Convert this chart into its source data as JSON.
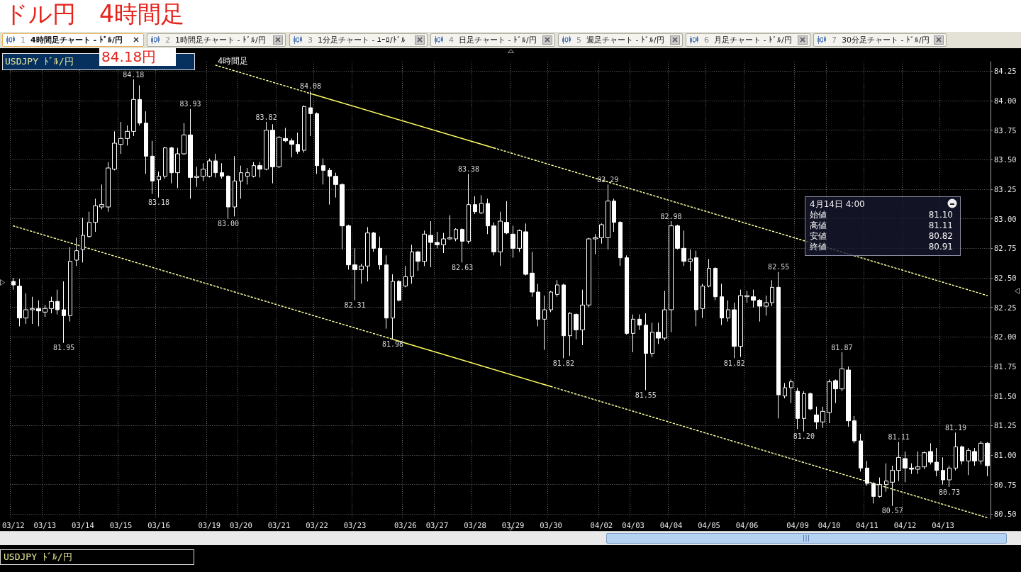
{
  "chart_data": {
    "type": "candlestick",
    "title": "ドル円　4時間足",
    "subtitle": "USDJPY ﾄﾞﾙ/円",
    "categories": [
      "03/12",
      null,
      null,
      null,
      null,
      "03/13",
      null,
      null,
      null,
      null,
      null,
      "03/14",
      null,
      null,
      null,
      null,
      null,
      "03/15",
      null,
      null,
      null,
      null,
      null,
      "03/16",
      null,
      null,
      null,
      null,
      null,
      null,
      null,
      "03/19",
      null,
      null,
      null,
      null,
      "03/20",
      null,
      null,
      null,
      null,
      null,
      "03/21",
      null,
      null,
      null,
      null,
      null,
      "03/22",
      null,
      null,
      null,
      null,
      null,
      "03/23",
      null,
      null,
      null,
      null,
      null,
      null,
      null,
      "03/26",
      null,
      null,
      null,
      null,
      "03/27",
      null,
      null,
      null,
      null,
      null,
      "03/28",
      null,
      null,
      null,
      null,
      null,
      "03/29",
      null,
      null,
      null,
      null,
      null,
      "03/30",
      null,
      null,
      null,
      null,
      null,
      null,
      null,
      "04/02",
      null,
      null,
      null,
      null,
      "04/03",
      null,
      null,
      null,
      null,
      null,
      "04/04",
      null,
      null,
      null,
      null,
      null,
      "04/05",
      null,
      null,
      null,
      null,
      null,
      "04/06",
      null,
      null,
      null,
      null,
      null,
      null,
      null,
      "04/09",
      null,
      null,
      null,
      null,
      "04/10",
      null,
      null,
      null,
      null,
      null,
      "04/11",
      null,
      null,
      null,
      null,
      null,
      "04/12",
      null,
      null,
      null,
      null,
      null,
      "04/13",
      null,
      null,
      null,
      null,
      null,
      null,
      null
    ],
    "ohlc": [
      [
        82.47,
        82.5,
        82.4,
        82.44
      ],
      [
        82.43,
        82.49,
        82.09,
        82.16
      ],
      [
        82.16,
        82.37,
        82.11,
        82.23
      ],
      [
        82.23,
        82.34,
        82.11,
        82.24
      ],
      [
        82.24,
        82.31,
        82.09,
        82.22
      ],
      [
        82.21,
        82.27,
        82.17,
        82.24
      ],
      [
        82.24,
        82.34,
        82.2,
        82.3
      ],
      [
        82.3,
        82.4,
        82.19,
        82.23
      ],
      [
        82.23,
        82.47,
        81.95,
        82.18
      ],
      [
        82.18,
        82.76,
        82.13,
        82.64
      ],
      [
        82.65,
        82.84,
        82.6,
        82.73
      ],
      [
        82.74,
        83.01,
        82.63,
        82.86
      ],
      [
        82.85,
        83.06,
        82.84,
        82.97
      ],
      [
        82.97,
        83.17,
        82.89,
        83.11
      ],
      [
        83.1,
        83.29,
        83.08,
        83.12
      ],
      [
        83.1,
        83.48,
        83.06,
        83.43
      ],
      [
        83.42,
        83.74,
        83.41,
        83.64
      ],
      [
        83.63,
        83.82,
        83.55,
        83.68
      ],
      [
        83.68,
        83.79,
        83.62,
        83.74
      ],
      [
        83.74,
        84.18,
        83.7,
        84.01
      ],
      [
        84.01,
        84.13,
        83.79,
        83.81
      ],
      [
        83.81,
        83.91,
        83.38,
        83.53
      ],
      [
        83.53,
        83.66,
        83.21,
        83.32
      ],
      [
        83.33,
        83.4,
        83.18,
        83.36
      ],
      [
        83.36,
        83.61,
        83.34,
        83.6
      ],
      [
        83.6,
        83.61,
        83.3,
        83.39
      ],
      [
        83.39,
        83.6,
        83.26,
        83.55
      ],
      [
        83.55,
        83.81,
        83.54,
        83.71
      ],
      [
        83.71,
        83.93,
        83.17,
        83.35
      ],
      [
        83.35,
        83.44,
        83.27,
        83.36
      ],
      [
        83.36,
        83.47,
        83.32,
        83.42
      ],
      [
        83.36,
        83.51,
        83.35,
        83.49
      ],
      [
        83.49,
        83.55,
        83.35,
        83.39
      ],
      [
        83.39,
        83.47,
        83.34,
        83.36
      ],
      [
        83.36,
        83.37,
        83.0,
        83.1
      ],
      [
        83.1,
        83.53,
        83.02,
        83.32
      ],
      [
        83.32,
        83.45,
        83.17,
        83.39
      ],
      [
        83.36,
        83.43,
        83.29,
        83.39
      ],
      [
        83.36,
        83.48,
        83.35,
        83.45
      ],
      [
        83.45,
        83.48,
        83.35,
        83.42
      ],
      [
        83.42,
        83.82,
        83.41,
        83.75
      ],
      [
        83.75,
        83.8,
        83.3,
        83.44
      ],
      [
        83.44,
        83.7,
        83.43,
        83.69
      ],
      [
        83.68,
        83.77,
        83.65,
        83.66
      ],
      [
        83.66,
        83.68,
        83.52,
        83.63
      ],
      [
        83.63,
        83.73,
        83.55,
        83.57
      ],
      [
        83.58,
        83.96,
        83.56,
        83.95
      ],
      [
        83.94,
        84.08,
        83.7,
        83.89
      ],
      [
        83.89,
        83.9,
        83.38,
        83.45
      ],
      [
        83.45,
        83.51,
        83.29,
        83.41
      ],
      [
        83.41,
        83.43,
        83.12,
        83.36
      ],
      [
        83.36,
        83.39,
        83.18,
        83.29
      ],
      [
        83.29,
        83.3,
        82.74,
        82.94
      ],
      [
        82.94,
        82.95,
        82.57,
        82.61
      ],
      [
        82.61,
        82.75,
        82.31,
        82.57
      ],
      [
        82.57,
        82.62,
        82.45,
        82.6
      ],
      [
        82.6,
        82.93,
        82.47,
        82.88
      ],
      [
        82.88,
        82.89,
        82.72,
        82.75
      ],
      [
        82.75,
        82.85,
        82.57,
        82.61
      ],
      [
        82.61,
        82.69,
        82.07,
        82.16
      ],
      [
        82.16,
        82.53,
        81.98,
        82.47
      ],
      [
        82.47,
        82.48,
        82.3,
        82.31
      ],
      [
        82.43,
        82.6,
        82.42,
        82.51
      ],
      [
        82.51,
        82.78,
        82.45,
        82.72
      ],
      [
        82.72,
        82.73,
        82.56,
        82.64
      ],
      [
        82.64,
        82.9,
        82.6,
        82.87
      ],
      [
        82.86,
        82.98,
        82.59,
        82.8
      ],
      [
        82.8,
        82.89,
        82.75,
        82.78
      ],
      [
        82.78,
        82.88,
        82.71,
        82.83
      ],
      [
        82.83,
        83.03,
        82.82,
        82.84
      ],
      [
        82.83,
        82.92,
        82.81,
        82.91
      ],
      [
        82.91,
        82.92,
        82.63,
        82.81
      ],
      [
        82.81,
        83.38,
        82.79,
        83.12
      ],
      [
        83.12,
        83.19,
        83.04,
        83.06
      ],
      [
        83.05,
        83.2,
        83.04,
        83.13
      ],
      [
        83.13,
        83.17,
        82.87,
        82.94
      ],
      [
        82.94,
        82.97,
        82.69,
        82.72
      ],
      [
        82.72,
        83.06,
        82.6,
        82.98
      ],
      [
        82.97,
        83.15,
        82.87,
        82.88
      ],
      [
        82.87,
        82.94,
        82.67,
        82.75
      ],
      [
        82.75,
        82.91,
        82.72,
        82.9
      ],
      [
        82.89,
        82.96,
        82.52,
        82.53
      ],
      [
        82.54,
        82.72,
        82.34,
        82.38
      ],
      [
        82.38,
        82.45,
        82.09,
        82.15
      ],
      [
        82.15,
        82.35,
        81.89,
        82.23
      ],
      [
        82.23,
        82.39,
        82.21,
        82.38
      ],
      [
        82.36,
        82.48,
        82.34,
        82.44
      ],
      [
        82.44,
        82.45,
        81.82,
        82.01
      ],
      [
        82.01,
        82.21,
        81.84,
        82.2
      ],
      [
        82.19,
        82.2,
        81.98,
        82.06
      ],
      [
        82.06,
        82.4,
        81.93,
        82.27
      ],
      [
        82.27,
        82.84,
        82.25,
        82.83
      ],
      [
        82.83,
        82.87,
        82.7,
        82.84
      ],
      [
        82.84,
        82.96,
        82.79,
        82.95
      ],
      [
        82.84,
        83.29,
        82.74,
        83.15
      ],
      [
        83.15,
        83.17,
        82.89,
        82.97
      ],
      [
        82.97,
        82.98,
        82.6,
        82.67
      ],
      [
        82.67,
        82.69,
        82.02,
        82.03
      ],
      [
        82.03,
        82.19,
        81.87,
        82.15
      ],
      [
        82.15,
        82.19,
        82.06,
        82.1
      ],
      [
        82.1,
        82.2,
        81.55,
        81.86
      ],
      [
        81.86,
        82.12,
        81.83,
        82.04
      ],
      [
        82.04,
        82.12,
        81.94,
        81.99
      ],
      [
        81.99,
        82.39,
        81.97,
        82.23
      ],
      [
        82.23,
        82.98,
        82.04,
        82.94
      ],
      [
        82.94,
        82.95,
        82.74,
        82.75
      ],
      [
        82.75,
        82.9,
        82.6,
        82.64
      ],
      [
        82.64,
        82.74,
        82.56,
        82.66
      ],
      [
        82.67,
        82.73,
        82.09,
        82.23
      ],
      [
        82.24,
        82.45,
        82.16,
        82.43
      ],
      [
        82.43,
        82.66,
        82.42,
        82.58
      ],
      [
        82.58,
        82.59,
        82.31,
        82.34
      ],
      [
        82.34,
        82.45,
        82.1,
        82.16
      ],
      [
        82.16,
        82.31,
        82.13,
        82.23
      ],
      [
        82.23,
        82.29,
        81.82,
        81.92
      ],
      [
        81.92,
        82.4,
        81.83,
        82.35
      ],
      [
        82.34,
        82.39,
        82.29,
        82.35
      ],
      [
        82.34,
        82.4,
        82.25,
        82.31
      ],
      [
        82.31,
        82.32,
        82.13,
        82.26
      ],
      [
        82.26,
        82.35,
        82.18,
        82.29
      ],
      [
        82.29,
        82.48,
        82.26,
        82.42
      ],
      [
        82.42,
        82.55,
        81.31,
        81.51
      ],
      [
        81.5,
        81.61,
        81.48,
        81.57
      ],
      [
        81.57,
        81.64,
        81.44,
        81.62
      ],
      [
        81.54,
        81.57,
        81.22,
        81.31
      ],
      [
        81.31,
        81.54,
        81.2,
        81.52
      ],
      [
        81.52,
        81.53,
        81.38,
        81.39
      ],
      [
        81.34,
        81.41,
        81.22,
        81.28
      ],
      [
        81.28,
        81.41,
        81.23,
        81.37
      ],
      [
        81.36,
        81.64,
        81.27,
        81.62
      ],
      [
        81.63,
        81.64,
        81.44,
        81.56
      ],
      [
        81.56,
        81.87,
        81.54,
        81.73
      ],
      [
        81.72,
        81.75,
        81.24,
        81.29
      ],
      [
        81.29,
        81.33,
        81.1,
        81.12
      ],
      [
        81.12,
        81.18,
        80.86,
        80.89
      ],
      [
        80.89,
        80.95,
        80.74,
        80.76
      ],
      [
        80.76,
        80.77,
        80.59,
        80.65
      ],
      [
        80.65,
        80.81,
        80.64,
        80.75
      ],
      [
        80.75,
        80.93,
        80.69,
        80.78
      ],
      [
        80.77,
        80.91,
        80.57,
        80.87
      ],
      [
        80.87,
        81.11,
        80.78,
        80.98
      ],
      [
        80.97,
        81.03,
        80.77,
        80.89
      ],
      [
        80.89,
        80.93,
        80.84,
        80.88
      ],
      [
        80.88,
        81.03,
        80.84,
        80.9
      ],
      [
        80.9,
        81.03,
        80.88,
        81.02
      ],
      [
        81.03,
        81.1,
        80.92,
        80.94
      ],
      [
        80.94,
        81.06,
        80.82,
        80.87
      ],
      [
        80.87,
        80.98,
        80.75,
        80.79
      ],
      [
        80.79,
        80.91,
        80.73,
        80.89
      ],
      [
        80.89,
        81.19,
        80.87,
        81.07
      ],
      [
        81.07,
        81.08,
        80.92,
        80.95
      ],
      [
        80.95,
        81.06,
        80.83,
        81.04
      ],
      [
        81.03,
        81.06,
        80.91,
        80.95
      ],
      [
        80.95,
        81.12,
        80.92,
        81.1
      ],
      [
        81.1,
        81.11,
        80.82,
        80.91
      ]
    ],
    "color": "#ffffff",
    "series": [
      {
        "type": "line",
        "name": "4時間足",
        "color": "#ffffa0",
        "line_style": "dotted",
        "values": [
          null,
          null,
          null,
          null,
          null,
          null,
          null,
          null,
          null,
          null,
          null,
          null,
          null,
          null,
          null,
          null,
          null,
          null,
          null,
          null,
          null,
          null,
          null,
          null,
          null,
          null,
          null,
          null,
          null,
          null,
          null,
          null,
          84.3,
          null,
          null,
          null,
          null,
          null,
          null,
          null,
          null,
          null,
          null,
          null,
          null,
          null,
          null,
          84.06,
          null,
          null,
          null,
          null,
          null,
          null,
          null,
          null,
          null,
          null,
          null,
          null,
          null,
          null,
          null,
          null,
          null,
          null,
          null,
          null,
          null,
          null,
          null,
          null,
          null,
          null,
          null,
          null,
          null,
          null,
          null,
          null,
          null,
          null,
          null,
          null,
          null,
          null,
          null,
          null,
          null,
          null,
          null,
          null,
          null,
          null,
          null,
          null,
          null,
          null,
          null,
          null,
          null,
          null,
          null,
          null,
          null,
          null,
          null,
          null,
          null,
          null,
          null,
          null,
          null,
          null,
          null,
          null,
          null,
          null,
          null,
          null,
          null,
          null,
          null,
          null,
          null,
          null,
          null,
          null,
          null,
          null,
          null,
          null,
          null,
          null,
          null,
          null,
          null,
          null,
          null,
          null,
          null,
          null,
          null,
          null,
          null,
          null,
          null,
          null,
          null,
          null,
          null,
          null,
          null,
          null,
          null
        ]
      },
      {
        "type": "line",
        "color": "#ffff60",
        "line_style": "solid",
        "values": [
          null,
          null,
          null,
          null,
          null,
          null,
          null,
          null,
          null,
          null,
          null,
          null,
          null,
          null,
          null,
          null,
          null,
          null,
          null,
          null,
          null,
          null,
          null,
          null,
          null,
          null,
          null,
          null,
          null,
          null,
          null,
          null,
          null,
          null,
          null,
          null,
          null,
          null,
          null,
          null,
          null,
          null,
          null,
          null,
          null,
          null,
          null,
          84.06,
          null,
          null,
          null,
          null,
          null,
          null,
          null,
          null,
          null,
          null,
          null,
          null,
          null,
          null,
          null,
          null,
          null,
          null,
          null,
          null,
          null,
          null,
          null,
          null,
          null,
          null,
          null,
          null,
          83.6,
          null,
          null,
          null,
          null,
          null,
          null,
          null,
          null,
          null,
          null,
          null,
          null,
          null,
          null,
          null,
          null,
          null,
          null,
          null,
          null,
          null,
          null,
          null,
          null,
          null,
          null,
          null,
          null,
          null,
          null,
          null,
          null,
          null,
          null,
          null,
          null,
          null,
          null,
          null,
          null,
          null,
          null,
          null,
          null,
          null,
          null,
          null,
          null,
          null,
          null,
          null,
          null,
          null,
          null,
          null,
          null,
          null,
          null,
          null,
          null,
          null,
          null,
          null,
          null,
          null,
          null,
          null,
          null,
          null,
          null,
          null,
          null,
          null,
          null,
          null,
          null,
          null,
          null
        ]
      },
      {
        "type": "line",
        "color": "#ffffa0",
        "line_style": "dotted",
        "values": [
          null,
          null,
          null,
          null,
          null,
          null,
          null,
          null,
          null,
          null,
          null,
          null,
          null,
          null,
          null,
          null,
          null,
          null,
          null,
          null,
          null,
          null,
          null,
          null,
          null,
          null,
          null,
          null,
          null,
          null,
          null,
          null,
          null,
          null,
          null,
          null,
          null,
          null,
          null,
          null,
          null,
          null,
          null,
          null,
          null,
          null,
          null,
          null,
          null,
          null,
          null,
          null,
          null,
          null,
          null,
          null,
          null,
          null,
          null,
          null,
          null,
          null,
          null,
          null,
          null,
          null,
          null,
          null,
          null,
          null,
          null,
          null,
          null,
          null,
          null,
          null,
          83.6,
          null,
          null,
          null,
          null,
          null,
          null,
          null,
          null,
          null,
          null,
          null,
          null,
          null,
          null,
          null,
          null,
          null,
          null,
          null,
          null,
          null,
          null,
          null,
          null,
          null,
          null,
          null,
          null,
          null,
          null,
          null,
          null,
          null,
          null,
          null,
          null,
          null,
          null,
          null,
          null,
          null,
          null,
          null,
          null,
          null,
          null,
          null,
          null,
          null,
          null,
          null,
          null,
          null,
          null,
          null,
          null,
          null,
          null,
          null,
          null,
          null,
          null,
          null,
          null,
          null,
          null,
          null,
          null,
          null,
          null,
          null,
          null,
          null,
          null,
          null,
          null,
          null,
          82.35
        ]
      },
      {
        "type": "line",
        "color": "#ffffa0",
        "line_style": "dotted",
        "values": [
          82.94,
          null,
          null,
          null,
          null,
          null,
          null,
          null,
          null,
          null,
          null,
          null,
          null,
          null,
          null,
          null,
          null,
          null,
          null,
          null,
          null,
          null,
          null,
          null,
          null,
          null,
          null,
          null,
          null,
          null,
          null,
          null,
          null,
          null,
          null,
          null,
          null,
          null,
          null,
          null,
          null,
          null,
          null,
          null,
          null,
          null,
          null,
          null,
          null,
          null,
          null,
          null,
          null,
          null,
          null,
          null,
          null,
          null,
          null,
          null,
          81.98,
          null,
          null,
          null,
          null,
          null,
          null,
          null,
          null,
          null,
          null,
          null,
          null,
          null,
          null,
          null,
          null,
          null,
          null,
          null,
          null,
          null,
          null,
          null,
          null,
          null,
          null,
          null,
          null,
          null,
          null,
          null,
          null,
          null,
          null,
          null,
          null,
          null,
          null,
          null,
          null,
          null,
          null,
          null,
          null,
          null,
          null,
          null,
          null,
          null,
          null,
          null,
          null,
          null,
          null,
          null,
          null,
          null,
          null,
          null,
          null,
          null,
          null,
          null,
          null,
          null,
          null,
          null,
          null,
          null,
          null,
          null,
          null,
          null,
          null,
          null,
          null,
          null,
          null,
          null,
          null,
          null,
          null,
          null,
          null,
          null,
          null,
          null,
          null,
          null,
          null,
          null,
          null,
          null,
          null
        ]
      },
      {
        "type": "line",
        "color": "#ffff60",
        "line_style": "solid",
        "values": [
          null,
          null,
          null,
          null,
          null,
          null,
          null,
          null,
          null,
          null,
          null,
          null,
          null,
          null,
          null,
          null,
          null,
          null,
          null,
          null,
          null,
          null,
          null,
          null,
          null,
          null,
          null,
          null,
          null,
          null,
          null,
          null,
          null,
          null,
          null,
          null,
          null,
          null,
          null,
          null,
          null,
          null,
          null,
          null,
          null,
          null,
          null,
          null,
          null,
          null,
          null,
          null,
          null,
          null,
          null,
          null,
          null,
          null,
          null,
          null,
          81.98,
          null,
          null,
          null,
          null,
          null,
          null,
          null,
          null,
          null,
          null,
          null,
          null,
          null,
          null,
          null,
          null,
          null,
          null,
          null,
          null,
          null,
          null,
          null,
          null,
          81.58,
          null,
          null,
          null,
          null,
          null,
          null,
          null,
          null,
          null,
          null,
          null,
          null,
          null,
          null,
          null,
          null,
          null,
          null,
          null,
          null,
          null,
          null,
          null,
          null,
          null,
          null,
          null,
          null,
          null,
          null,
          null,
          null,
          null,
          null,
          null,
          null,
          null,
          null,
          null,
          null,
          null,
          null,
          null,
          null,
          null,
          null,
          null,
          null,
          null,
          null,
          null,
          null,
          null,
          null,
          null,
          null,
          null,
          null,
          null,
          null,
          null,
          null,
          null,
          null,
          null,
          null,
          null,
          null,
          null
        ]
      },
      {
        "type": "line",
        "color": "#ffffa0",
        "line_style": "dotted",
        "values": [
          null,
          null,
          null,
          null,
          null,
          null,
          null,
          null,
          null,
          null,
          null,
          null,
          null,
          null,
          null,
          null,
          null,
          null,
          null,
          null,
          null,
          null,
          null,
          null,
          null,
          null,
          null,
          null,
          null,
          null,
          null,
          null,
          null,
          null,
          null,
          null,
          null,
          null,
          null,
          null,
          null,
          null,
          null,
          null,
          null,
          null,
          null,
          null,
          null,
          null,
          null,
          null,
          null,
          null,
          null,
          null,
          null,
          null,
          null,
          null,
          null,
          null,
          null,
          null,
          null,
          null,
          null,
          null,
          null,
          null,
          null,
          null,
          null,
          null,
          null,
          null,
          null,
          null,
          null,
          null,
          null,
          null,
          null,
          null,
          null,
          81.58,
          null,
          null,
          null,
          null,
          null,
          null,
          null,
          null,
          null,
          null,
          null,
          null,
          null,
          null,
          null,
          null,
          null,
          null,
          null,
          null,
          null,
          null,
          null,
          null,
          null,
          null,
          null,
          null,
          null,
          null,
          null,
          null,
          null,
          null,
          null,
          null,
          null,
          null,
          null,
          null,
          null,
          null,
          null,
          null,
          null,
          null,
          null,
          null,
          null,
          null,
          null,
          null,
          null,
          null,
          null,
          null,
          null,
          null,
          null,
          null,
          null,
          null,
          null,
          null,
          null,
          null,
          null,
          null,
          80.47
        ]
      }
    ],
    "ylim": [
      80.46,
      84.33
    ],
    "yticks": [
      {
        "value": 80.5,
        "label": "80.50"
      },
      {
        "value": 80.75,
        "label": "80.75"
      },
      {
        "value": 81,
        "label": "81.00"
      },
      {
        "value": 81.25,
        "label": "81.25"
      },
      {
        "value": 81.5,
        "label": "81.50"
      },
      {
        "value": 81.75,
        "label": "81.75"
      },
      {
        "value": 82,
        "label": "82.00"
      },
      {
        "value": 82.25,
        "label": "82.25"
      },
      {
        "value": 82.5,
        "label": "82.50"
      },
      {
        "value": 82.75,
        "label": "82.75"
      },
      {
        "value": 83,
        "label": "83.00"
      },
      {
        "value": 83.25,
        "label": "83.25"
      },
      {
        "value": 83.5,
        "label": "83.50"
      },
      {
        "value": 83.75,
        "label": "83.75"
      },
      {
        "value": 84,
        "label": "84.00"
      },
      {
        "value": 84.25,
        "label": "84.25"
      }
    ],
    "grid": true,
    "annotations": [
      "1 4時間足チャート - ﾄﾞﾙ/円",
      "2 1時間足チャート - ﾄﾞﾙ/円",
      "3 1分足チャート - ﾕｰﾛ/ﾄﾞﾙ",
      "4 日足チャート - ﾄﾞﾙ/円",
      "5 週足チャート - ﾄﾞﾙ/円",
      "6 月足チャート - ﾄﾞﾙ/円",
      "7 30分足チャート - ﾄﾞﾙ/円",
      "84.18円",
      "4月14日 4:00\n始値 81.10\n高値 81.11\n安値 80.82\n終値 80.91",
      "USDJPY ﾄﾞﾙ/円",
      {
        "text": "81.95",
        "y": 81.95
      },
      {
        "text": "84.18",
        "y": 84.18
      },
      {
        "text": "83.18",
        "y": 83.18
      },
      {
        "text": "83.93",
        "y": 83.93
      },
      {
        "text": "83.00",
        "y": 83.0
      },
      {
        "text": "83.82",
        "y": 83.82
      },
      {
        "text": "84.08",
        "y": 84.08
      },
      {
        "text": "82.31",
        "y": 82.31
      },
      {
        "text": "81.98",
        "y": 81.98
      },
      {
        "text": "82.63",
        "y": 82.63
      },
      {
        "text": "83.38",
        "y": 83.38
      },
      {
        "text": "81.82",
        "y": 81.82
      },
      {
        "text": "83.29",
        "y": 83.29
      },
      {
        "text": "81.55",
        "y": 81.55
      },
      {
        "text": "82.98",
        "y": 82.98
      },
      {
        "text": "81.82",
        "y": 81.82
      },
      {
        "text": "82.55",
        "y": 82.55
      },
      {
        "text": "81.20",
        "y": 81.2
      },
      {
        "text": "81.87",
        "y": 81.87
      },
      {
        "text": "80.57",
        "y": 80.57
      },
      {
        "text": "81.11",
        "y": 81.11
      },
      {
        "text": "80.73",
        "y": 80.73
      },
      {
        "text": "81.19",
        "y": 81.19
      }
    ]
  }
}
